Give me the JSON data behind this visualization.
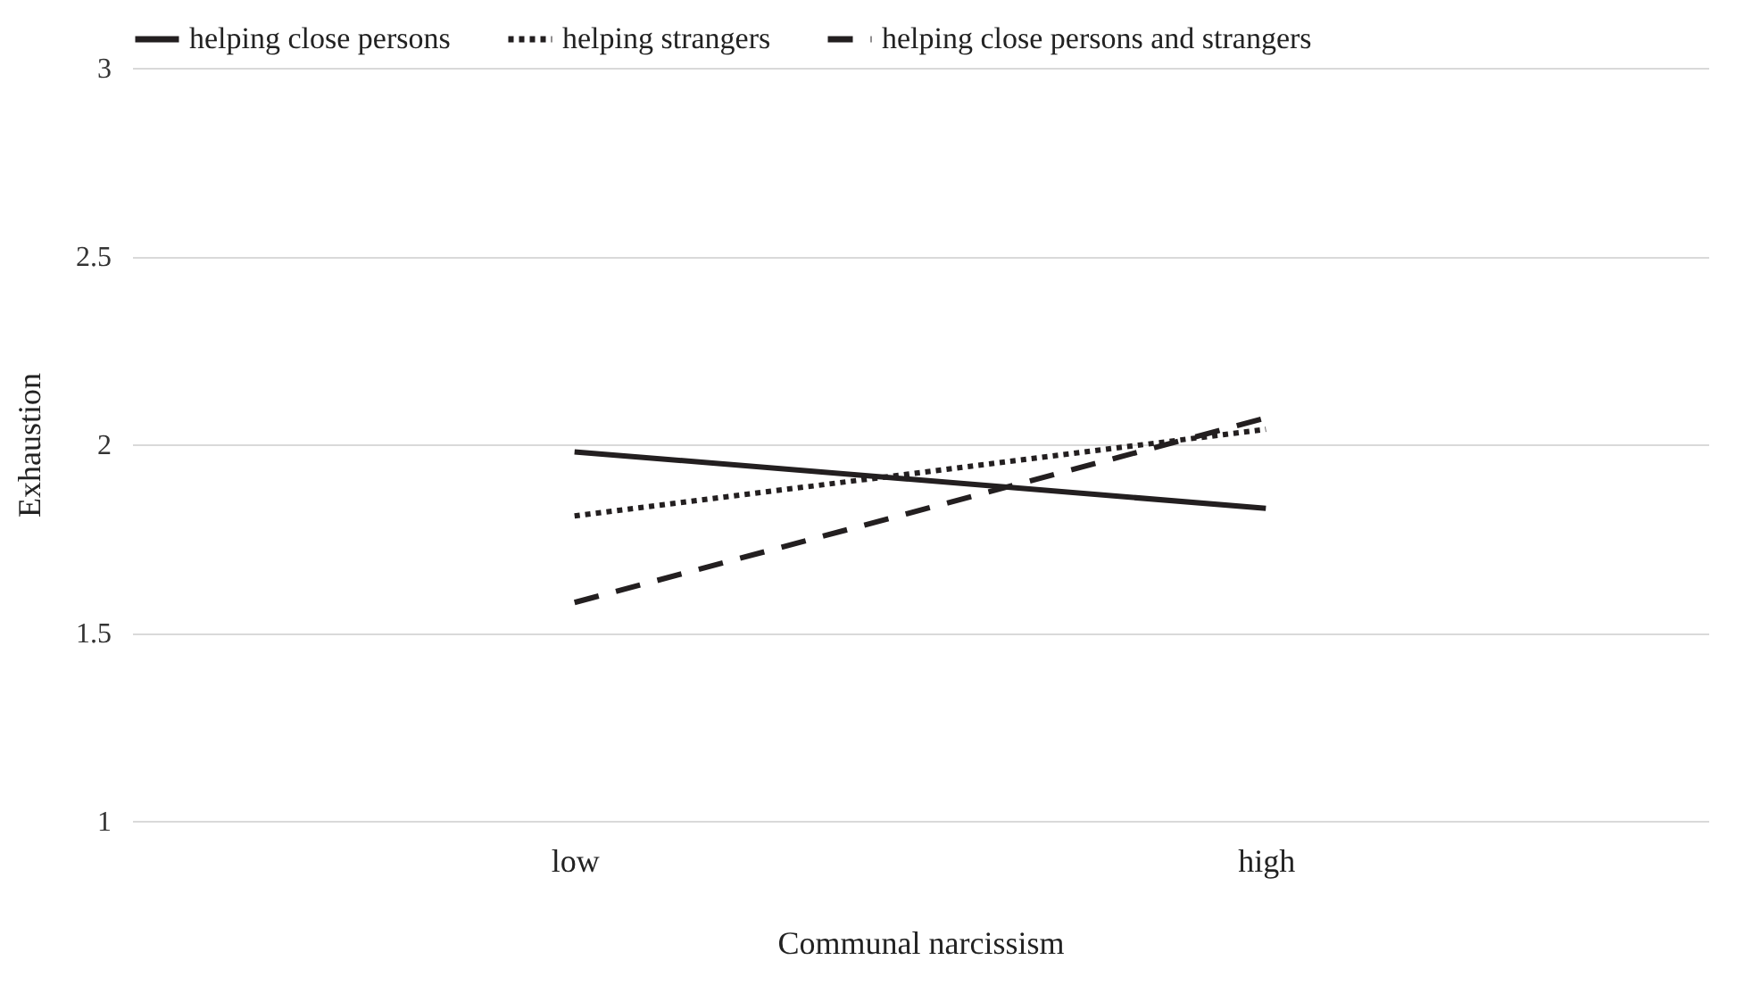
{
  "chart_data": {
    "type": "line",
    "xlabel": "Communal narcissism",
    "ylabel": "Exhaustion",
    "categories": [
      "low",
      "high"
    ],
    "series": [
      {
        "name": "helping close persons",
        "color": "#231f20",
        "line_style": "solid",
        "values": [
          1.98,
          1.83
        ]
      },
      {
        "name": "helping strangers",
        "color": "#231f20",
        "line_style": "dotted",
        "values": [
          1.81,
          2.04
        ]
      },
      {
        "name": "helping close persons and strangers",
        "color": "#231f20",
        "line_style": "dashed",
        "values": [
          1.58,
          2.07
        ]
      }
    ],
    "ylim": [
      1,
      3
    ],
    "yticks": [
      1,
      1.5,
      2,
      2.5,
      3
    ],
    "grid": "y",
    "legend": "top",
    "marker": "none"
  }
}
